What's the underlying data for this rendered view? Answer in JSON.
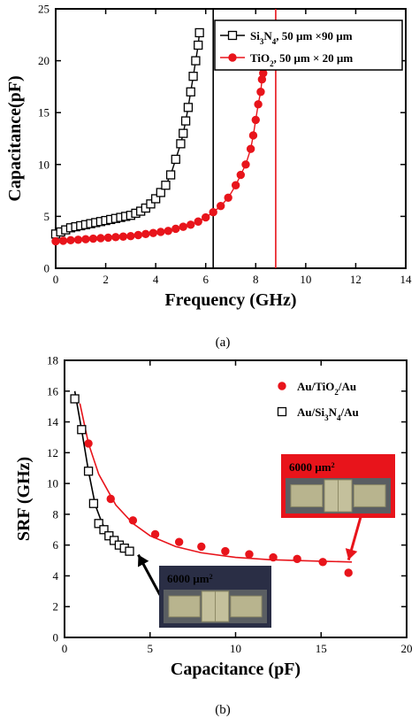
{
  "captions": {
    "a": "(a)",
    "b": "(b)"
  },
  "colors": {
    "si3n4": "#000000",
    "tio2": "#e8141b",
    "inset_frame_red": "#e8141b",
    "inset_frame_dark": "#2a2e45"
  },
  "chart_data": [
    {
      "type": "scatter",
      "xlabel": "Frequency (GHz)",
      "ylabel": "Capacitance(pF)",
      "xlim": [
        0,
        14
      ],
      "ylim": [
        0,
        25
      ],
      "xticks": [
        0,
        2,
        4,
        6,
        8,
        10,
        12,
        14
      ],
      "yticks": [
        0,
        5,
        10,
        15,
        20,
        25
      ],
      "legend_position": "top-right",
      "legend": [
        {
          "parts": [
            {
              "t": "Si"
            },
            {
              "t": "3",
              "sub": true
            },
            {
              "t": "N"
            },
            {
              "t": "4",
              "sub": true
            },
            {
              "t": ", 50 µm ×90 µm"
            }
          ]
        },
        {
          "parts": [
            {
              "t": "TiO"
            },
            {
              "t": "2",
              "sub": true
            },
            {
              "t": ", 50 µm × 20 µm"
            }
          ]
        }
      ],
      "series": [
        {
          "marker": "open-square",
          "color": "#000000",
          "x": [
            0.0,
            0.2,
            0.4,
            0.6,
            0.8,
            1.0,
            1.2,
            1.4,
            1.6,
            1.8,
            2.0,
            2.2,
            2.4,
            2.6,
            2.8,
            3.0,
            3.2,
            3.4,
            3.6,
            3.8,
            4.0,
            4.2,
            4.4,
            4.6,
            4.8,
            5.0,
            5.1,
            5.2,
            5.3,
            5.4,
            5.5,
            5.6,
            5.7,
            5.75
          ],
          "y": [
            3.3,
            3.5,
            3.7,
            3.9,
            4.0,
            4.1,
            4.2,
            4.3,
            4.4,
            4.5,
            4.6,
            4.7,
            4.8,
            4.9,
            5.0,
            5.1,
            5.3,
            5.5,
            5.8,
            6.2,
            6.7,
            7.3,
            8.0,
            9.0,
            10.5,
            12.0,
            13.0,
            14.2,
            15.5,
            17.0,
            18.5,
            20.0,
            21.5,
            22.7
          ]
        },
        {
          "marker": "filled-circle",
          "color": "#e8141b",
          "x": [
            0.0,
            0.3,
            0.6,
            0.9,
            1.2,
            1.5,
            1.8,
            2.1,
            2.4,
            2.7,
            3.0,
            3.3,
            3.6,
            3.9,
            4.2,
            4.5,
            4.8,
            5.1,
            5.4,
            5.7,
            6.0,
            6.3,
            6.6,
            6.9,
            7.2,
            7.4,
            7.6,
            7.8,
            7.9,
            8.0,
            8.1,
            8.2,
            8.25,
            8.3
          ],
          "y": [
            2.6,
            2.65,
            2.7,
            2.75,
            2.8,
            2.85,
            2.9,
            2.95,
            3.0,
            3.05,
            3.1,
            3.2,
            3.3,
            3.4,
            3.5,
            3.6,
            3.8,
            4.0,
            4.2,
            4.5,
            4.9,
            5.4,
            6.0,
            6.8,
            8.0,
            9.0,
            10.0,
            11.5,
            12.8,
            14.3,
            15.8,
            17.0,
            18.2,
            18.8
          ]
        }
      ],
      "vertical_lines": [
        {
          "x": 6.3,
          "color": "#000000"
        },
        {
          "x": 8.8,
          "color": "#e8141b"
        }
      ]
    },
    {
      "type": "scatter",
      "xlabel": "Capacitance (pF)",
      "ylabel": "SRF (GHz)",
      "xlim": [
        0,
        20
      ],
      "ylim": [
        0,
        18
      ],
      "xticks": [
        0,
        5,
        10,
        15,
        20
      ],
      "yticks": [
        0,
        2,
        4,
        6,
        8,
        10,
        12,
        14,
        16,
        18
      ],
      "legend_position": "top-right",
      "legend": [
        {
          "parts": [
            {
              "t": "Au/TiO"
            },
            {
              "t": "2",
              "sub": true
            },
            {
              "t": "/Au"
            }
          ]
        },
        {
          "parts": [
            {
              "t": "Au/Si"
            },
            {
              "t": "3",
              "sub": true
            },
            {
              "t": "N"
            },
            {
              "t": "4",
              "sub": true
            },
            {
              "t": "/Au"
            }
          ]
        }
      ],
      "series": [
        {
          "marker": "filled-circle",
          "color": "#e8141b",
          "x": [
            1.4,
            2.7,
            4.0,
            5.3,
            6.7,
            8.0,
            9.4,
            10.8,
            12.2,
            13.6,
            15.1,
            16.6
          ],
          "y": [
            12.6,
            9.0,
            7.6,
            6.7,
            6.2,
            5.9,
            5.6,
            5.4,
            5.2,
            5.1,
            4.9,
            4.2
          ],
          "fit": [
            [
              0.9,
              15.2
            ],
            [
              1.4,
              12.6
            ],
            [
              2.0,
              10.6
            ],
            [
              3.0,
              8.6
            ],
            [
              4.0,
              7.4
            ],
            [
              5.0,
              6.6
            ],
            [
              6.5,
              5.9
            ],
            [
              8.0,
              5.5
            ],
            [
              10.0,
              5.2
            ],
            [
              12.0,
              5.05
            ],
            [
              15.0,
              4.95
            ],
            [
              16.8,
              4.9
            ]
          ]
        },
        {
          "marker": "open-square",
          "color": "#000000",
          "x": [
            0.6,
            1.0,
            1.4,
            1.7,
            2.0,
            2.3,
            2.6,
            2.9,
            3.2,
            3.5,
            3.8
          ],
          "y": [
            15.5,
            13.5,
            10.8,
            8.7,
            7.4,
            7.0,
            6.6,
            6.3,
            6.0,
            5.8,
            5.6
          ],
          "fit": [
            [
              0.6,
              16.0
            ],
            [
              1.0,
              13.5
            ],
            [
              1.4,
              10.8
            ],
            [
              1.8,
              8.6
            ],
            [
              2.2,
              7.4
            ],
            [
              2.6,
              6.7
            ],
            [
              3.0,
              6.2
            ],
            [
              3.4,
              5.9
            ],
            [
              3.8,
              5.6
            ]
          ]
        }
      ],
      "insets": [
        {
          "label_main": "6000 µm",
          "label_sup": "2",
          "frame": "red",
          "arrow_to": [
            16.5,
            4.8
          ]
        },
        {
          "label_main": "6000 µm",
          "label_sup": "2",
          "frame": "dark",
          "arrow_to": [
            3.9,
            5.6
          ]
        }
      ]
    }
  ]
}
